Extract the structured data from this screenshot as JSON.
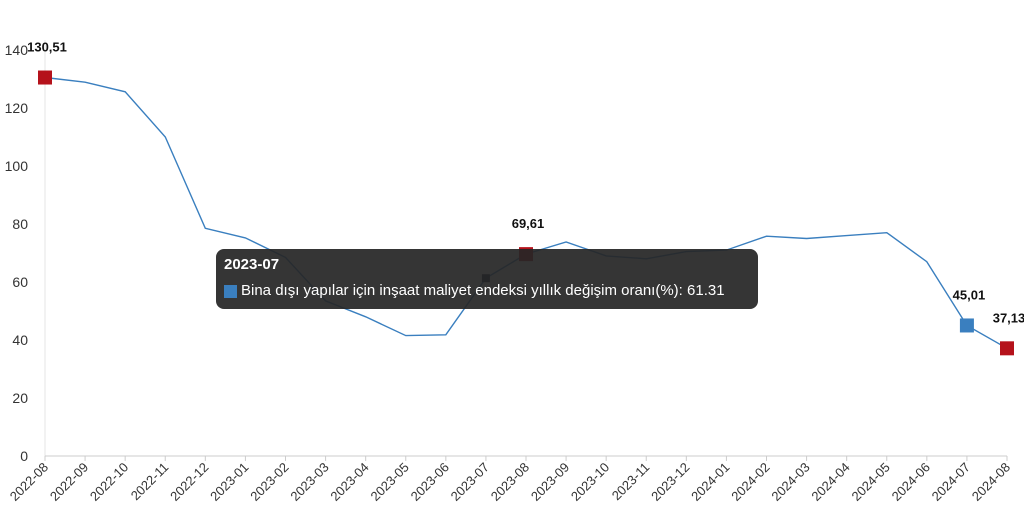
{
  "chart_data": {
    "type": "line",
    "x": [
      "2022-08",
      "2022-09",
      "2022-10",
      "2022-11",
      "2022-12",
      "2023-01",
      "2023-02",
      "2023-03",
      "2023-04",
      "2023-05",
      "2023-06",
      "2023-07",
      "2023-08",
      "2023-09",
      "2023-10",
      "2023-11",
      "2023-12",
      "2024-01",
      "2024-02",
      "2024-03",
      "2024-04",
      "2024-05",
      "2024-06",
      "2024-07",
      "2024-08"
    ],
    "series": [
      {
        "name": "Bina dışı yapılar için inşaat maliyet endeksi yıllık değişim oranı(%)",
        "values": [
          130.51,
          128.9,
          125.6,
          110.0,
          78.5,
          75.2,
          68.5,
          53.5,
          48.0,
          41.5,
          41.8,
          61.31,
          69.61,
          73.8,
          69.0,
          68.0,
          70.5,
          71.0,
          75.8,
          75.0,
          76.0,
          77.0,
          67.0,
          45.01,
          37.13
        ],
        "color": "#3a7fbf"
      }
    ],
    "ylim": [
      0,
      140
    ],
    "yticks": [
      0,
      20,
      40,
      60,
      80,
      100,
      120,
      140
    ],
    "grid": false,
    "highlight_markers": [
      {
        "x": "2022-08",
        "label": "130,51",
        "color": "#b5121b"
      },
      {
        "x": "2023-08",
        "label": "69,61",
        "color": "#b5121b"
      },
      {
        "x": "2024-07",
        "label": "45,01",
        "color": "#3a7fbf"
      },
      {
        "x": "2024-08",
        "label": "37,13",
        "color": "#b5121b"
      }
    ],
    "hover_point": "2023-07"
  },
  "tooltip": {
    "title": "2023-07",
    "series_label": "Bina dışı yapılar için inşaat maliyet endeksi yıllık değişim oranı(%): 61.31",
    "swatch_color": "#3a7fbf"
  }
}
